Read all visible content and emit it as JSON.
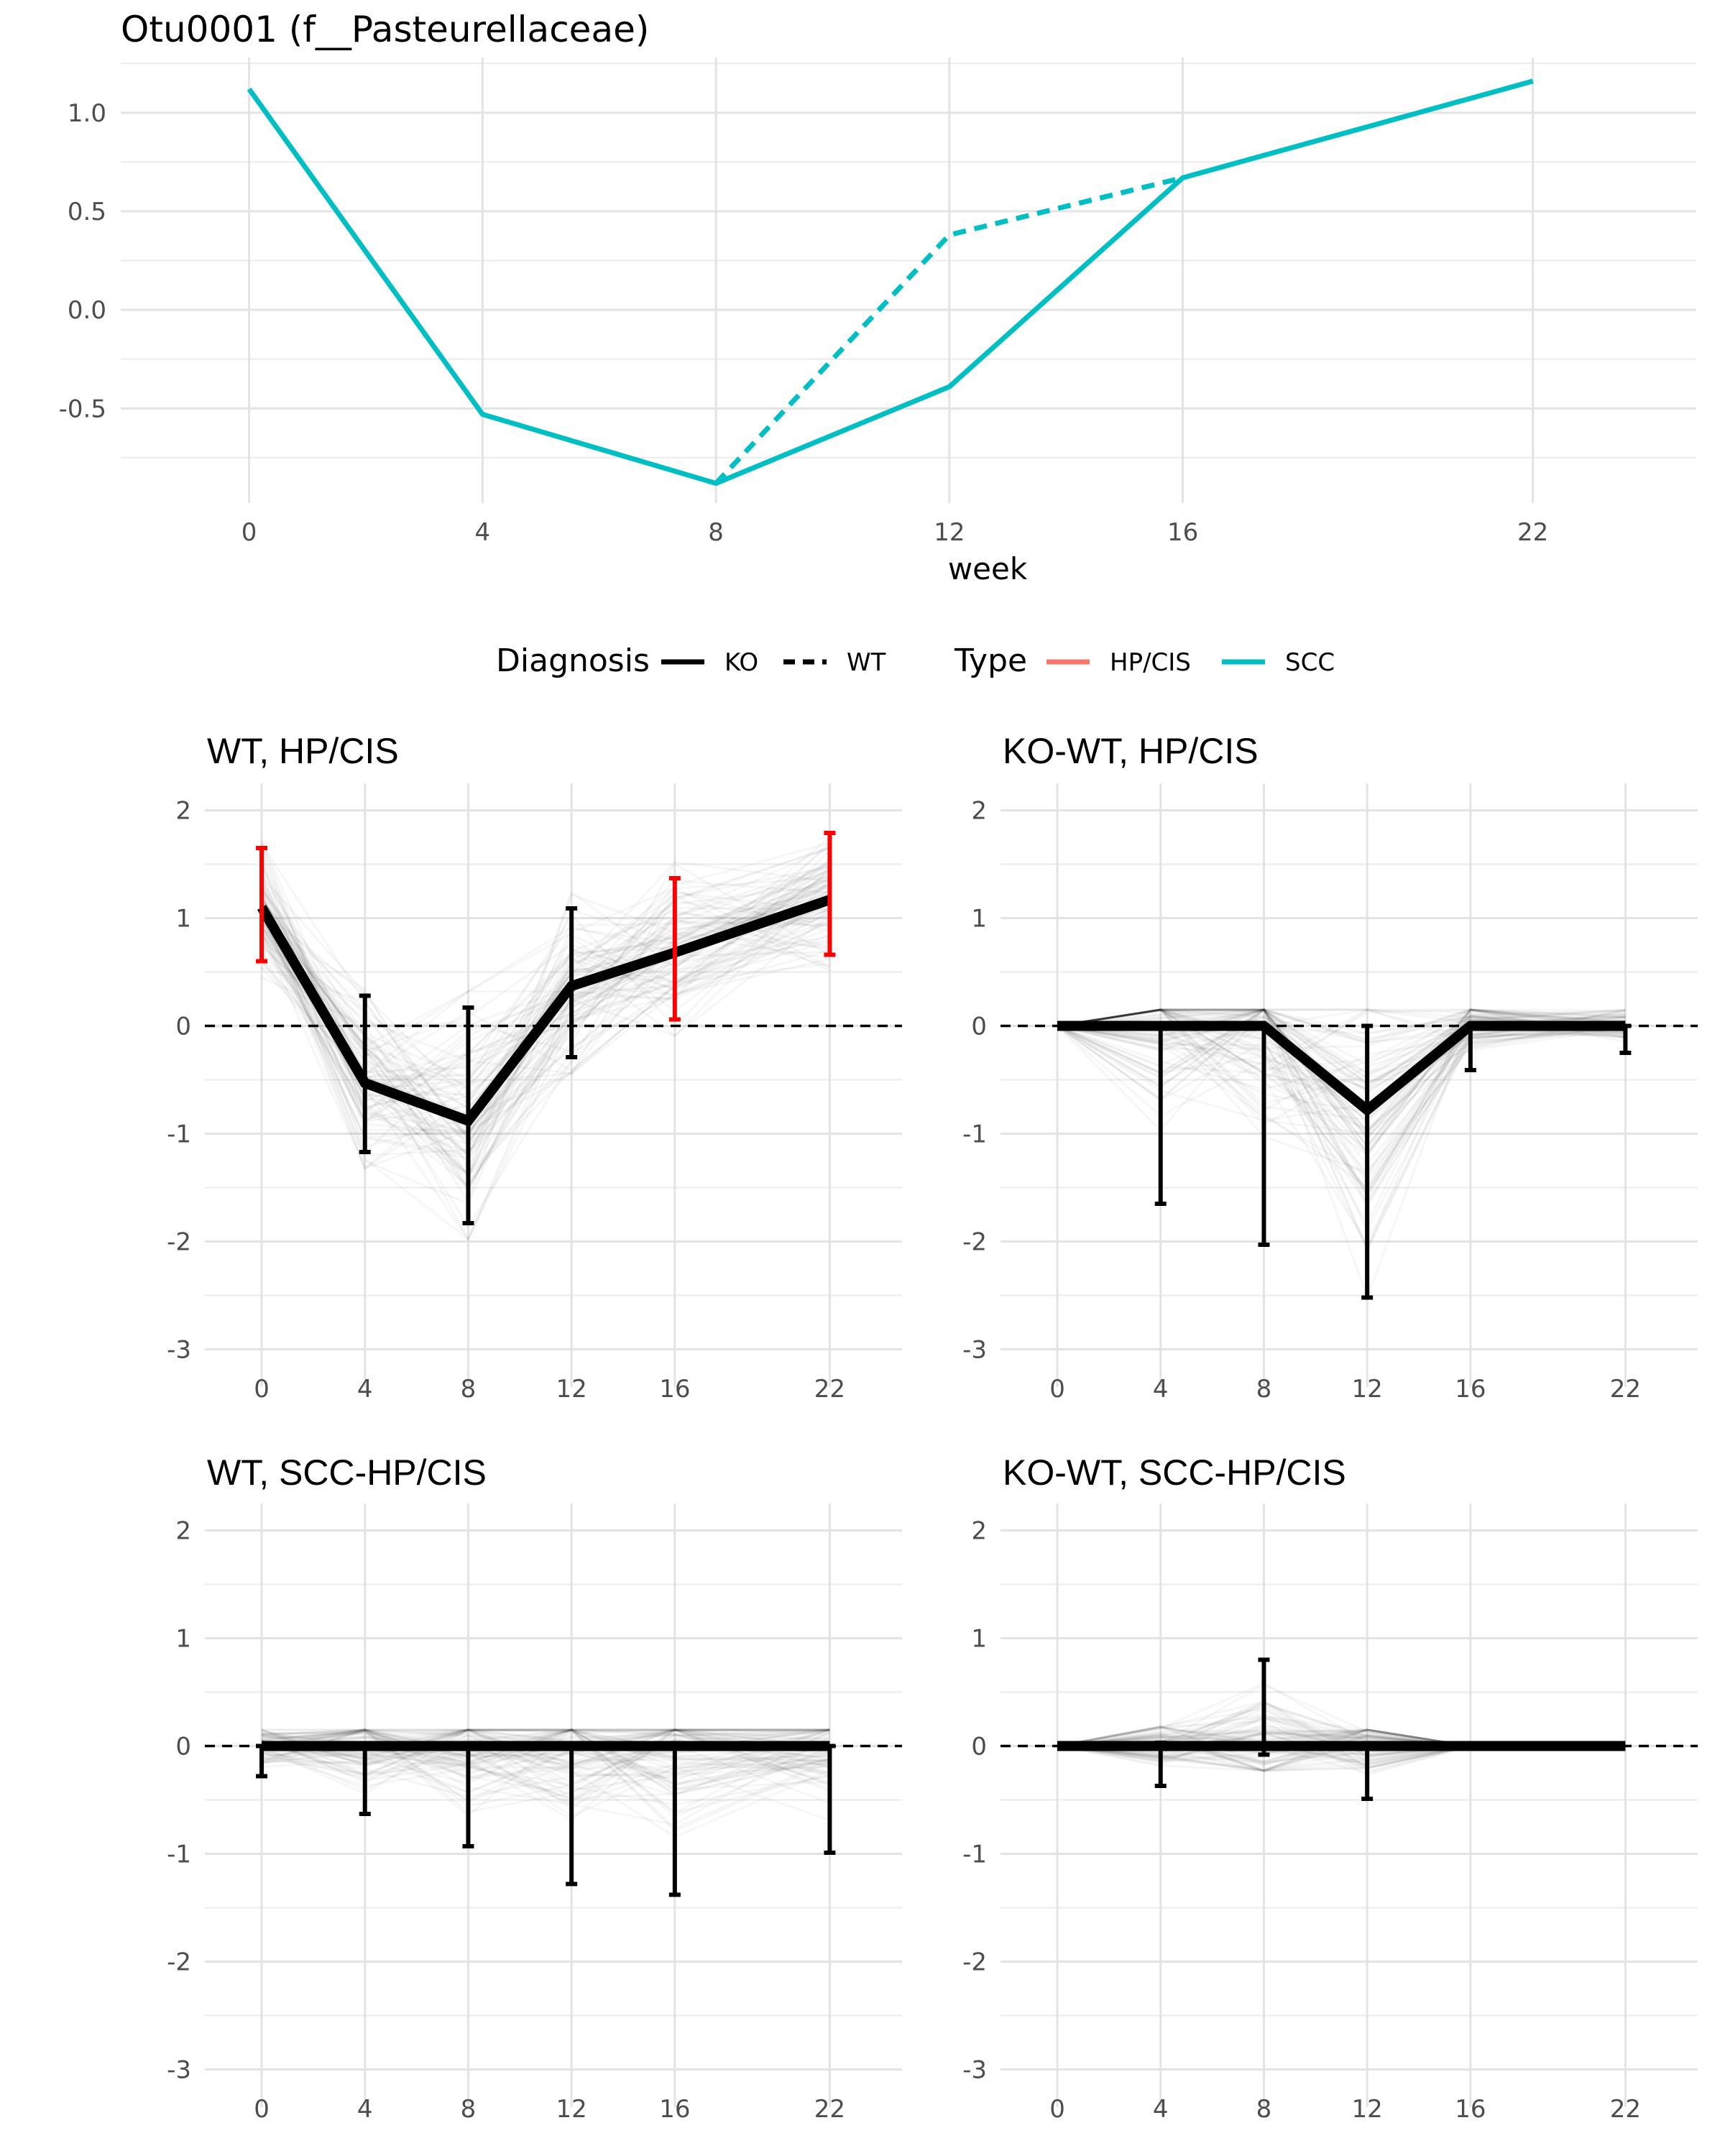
{
  "chart_data": [
    {
      "id": "top",
      "type": "line",
      "title": "Otu0001 (f__Pasteurellaceae)",
      "xlabel": "week",
      "ylabel": "",
      "x": [
        0,
        4,
        8,
        12,
        16,
        22
      ],
      "x_tick_labels": [
        "0",
        "4",
        "8",
        "12",
        "16",
        "22"
      ],
      "y_ticks": [
        1.0,
        0.5,
        0.0,
        -0.5
      ],
      "y_tick_labels": [
        "1.0",
        "0.5",
        "0.0",
        "-0.5"
      ],
      "xlim": [
        -2.2,
        24.8
      ],
      "ylim": [
        -0.98,
        1.28
      ],
      "series": [
        {
          "name": "SCC WT",
          "diagnosis": "WT",
          "type": "SCC",
          "linestyle": "dashed",
          "color": "#00bfc4",
          "x": [
            8,
            12,
            16
          ],
          "values": [
            -0.88,
            0.38,
            0.67
          ]
        },
        {
          "name": "SCC KO",
          "diagnosis": "KO",
          "type": "SCC",
          "linestyle": "solid",
          "color": "#00bfc4",
          "x": [
            0,
            4,
            8,
            12,
            16,
            22
          ],
          "values": [
            1.12,
            -0.53,
            -0.88,
            -0.39,
            0.67,
            1.16
          ]
        }
      ]
    },
    {
      "id": "wt-hp",
      "type": "line",
      "title": "WT, HP/CIS",
      "x": [
        0,
        4,
        8,
        12,
        16,
        22
      ],
      "x_tick_labels": [
        "0",
        "4",
        "8",
        "12",
        "16",
        "22"
      ],
      "y_ticks": [
        2,
        1,
        0,
        -1,
        -2,
        -3
      ],
      "y_tick_labels": [
        "2",
        "1",
        "0",
        "-1",
        "-2",
        "-3"
      ],
      "xlim": [
        -2.2,
        24.8
      ],
      "ylim": [
        -3.35,
        2.25
      ],
      "mean": [
        1.1,
        -0.53,
        -0.88,
        0.37,
        0.68,
        1.17
      ],
      "error_lower": [
        0.6,
        -1.17,
        -1.83,
        -0.29,
        0.06,
        0.66
      ],
      "error_upper": [
        1.65,
        0.28,
        0.17,
        1.09,
        1.37,
        1.79
      ],
      "error_colors": [
        "#ff0000",
        "#000000",
        "#000000",
        "#000000",
        "#ff0000",
        "#ff0000"
      ],
      "reference_line": 0
    },
    {
      "id": "kowt-hp",
      "type": "line",
      "title": "KO-WT, HP/CIS",
      "x": [
        0,
        4,
        8,
        12,
        16,
        22
      ],
      "x_tick_labels": [
        "0",
        "4",
        "8",
        "12",
        "16",
        "22"
      ],
      "y_ticks": [
        2,
        1,
        0,
        -1,
        -2,
        -3
      ],
      "y_tick_labels": [
        "2",
        "1",
        "0",
        "-1",
        "-2",
        "-3"
      ],
      "xlim": [
        -2.2,
        24.8
      ],
      "ylim": [
        -3.35,
        2.25
      ],
      "mean": [
        0,
        0,
        0,
        -0.78,
        0,
        0
      ],
      "error_lower": [
        0,
        -1.65,
        -2.03,
        -2.52,
        -0.41,
        -0.25
      ],
      "error_upper": [
        0,
        0,
        0,
        0,
        0,
        0
      ],
      "error_colors": [
        "#000000",
        "#000000",
        "#000000",
        "#000000",
        "#000000",
        "#000000"
      ],
      "reference_line": 0
    },
    {
      "id": "wt-scc",
      "type": "line",
      "title": "WT, SCC-HP/CIS",
      "x": [
        0,
        4,
        8,
        12,
        16,
        22
      ],
      "x_tick_labels": [
        "0",
        "4",
        "8",
        "12",
        "16",
        "22"
      ],
      "y_ticks": [
        2,
        1,
        0,
        -1,
        -2,
        -3
      ],
      "y_tick_labels": [
        "2",
        "1",
        "0",
        "-1",
        "-2",
        "-3"
      ],
      "xlim": [
        -2.2,
        24.8
      ],
      "ylim": [
        -3.35,
        2.25
      ],
      "mean": [
        0,
        0,
        0,
        0,
        0,
        0
      ],
      "error_lower": [
        -0.28,
        -0.63,
        -0.93,
        -1.28,
        -1.38,
        -0.99
      ],
      "error_upper": [
        0,
        0,
        0,
        0,
        0,
        0
      ],
      "error_colors": [
        "#000000",
        "#000000",
        "#000000",
        "#000000",
        "#000000",
        "#000000"
      ],
      "reference_line": 0
    },
    {
      "id": "kowt-scc",
      "type": "line",
      "title": "KO-WT, SCC-HP/CIS",
      "x": [
        0,
        4,
        8,
        12,
        16,
        22
      ],
      "x_tick_labels": [
        "0",
        "4",
        "8",
        "12",
        "16",
        "22"
      ],
      "y_ticks": [
        2,
        1,
        0,
        -1,
        -2,
        -3
      ],
      "y_tick_labels": [
        "2",
        "1",
        "0",
        "-1",
        "-2",
        "-3"
      ],
      "xlim": [
        -2.2,
        24.8
      ],
      "ylim": [
        -3.35,
        2.25
      ],
      "mean": [
        0,
        0,
        0,
        0,
        0,
        0
      ],
      "error_lower": [
        0,
        -0.37,
        -0.08,
        -0.49,
        0,
        0
      ],
      "error_upper": [
        0,
        0.03,
        0.8,
        0,
        0,
        0
      ],
      "error_colors": [
        "#000000",
        "#000000",
        "#000000",
        "#000000",
        "#000000",
        "#000000"
      ],
      "reference_line": 0
    }
  ],
  "legend": {
    "diagnosis_title": "Diagnosis",
    "diagnosis_items": [
      {
        "label": "KO",
        "linestyle": "solid"
      },
      {
        "label": "WT",
        "linestyle": "dashed"
      }
    ],
    "type_title": "Type",
    "type_items": [
      {
        "label": "HP/CIS",
        "color": "#f8766d"
      },
      {
        "label": "SCC",
        "color": "#00bfc4"
      }
    ]
  }
}
